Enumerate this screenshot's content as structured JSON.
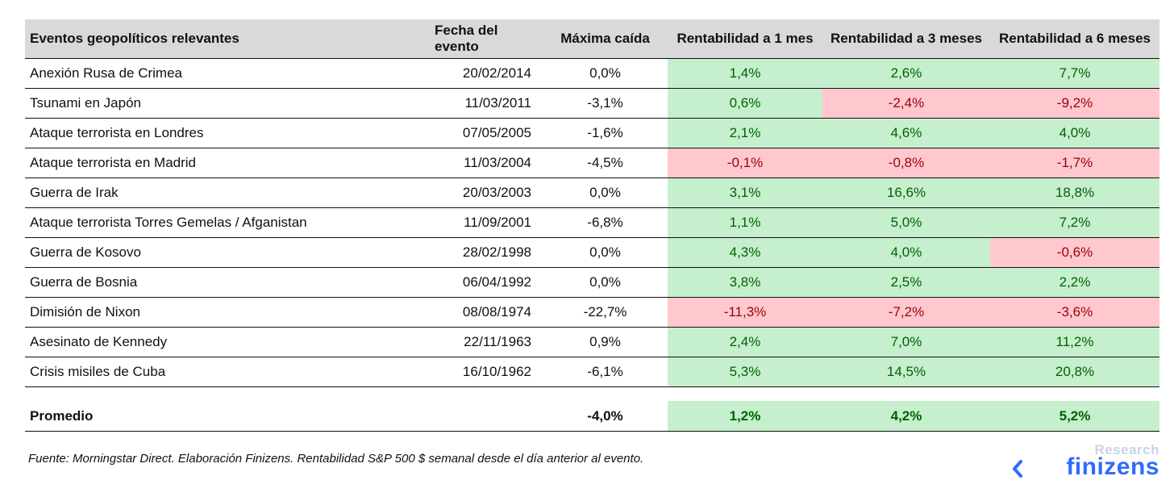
{
  "table": {
    "headers": [
      "Eventos geopolíticos relevantes",
      "Fecha del evento",
      "Máxima caída",
      "Rentabilidad a 1 mes",
      "Rentabilidad a 3 meses",
      "Rentabilidad a 6 meses"
    ],
    "rows": [
      {
        "event": "Anexión Rusa de Crimea",
        "date": "20/02/2014",
        "drop": "0,0%",
        "r1": "1,4%",
        "r3": "2,6%",
        "r6": "7,7%"
      },
      {
        "event": "Tsunami en Japón",
        "date": "11/03/2011",
        "drop": "-3,1%",
        "r1": "0,6%",
        "r3": "-2,4%",
        "r6": "-9,2%"
      },
      {
        "event": "Ataque terrorista en Londres",
        "date": "07/05/2005",
        "drop": "-1,6%",
        "r1": "2,1%",
        "r3": "4,6%",
        "r6": "4,0%"
      },
      {
        "event": "Ataque terrorista en Madrid",
        "date": "11/03/2004",
        "drop": "-4,5%",
        "r1": "-0,1%",
        "r3": "-0,8%",
        "r6": "-1,7%"
      },
      {
        "event": "Guerra de Irak",
        "date": "20/03/2003",
        "drop": "0,0%",
        "r1": "3,1%",
        "r3": "16,6%",
        "r6": "18,8%"
      },
      {
        "event": "Ataque terrorista Torres Gemelas / Afganistan",
        "date": "11/09/2001",
        "drop": "-6,8%",
        "r1": "1,1%",
        "r3": "5,0%",
        "r6": "7,2%"
      },
      {
        "event": "Guerra de Kosovo",
        "date": "28/02/1998",
        "drop": "0,0%",
        "r1": "4,3%",
        "r3": "4,0%",
        "r6": "-0,6%"
      },
      {
        "event": "Guerra de Bosnia",
        "date": "06/04/1992",
        "drop": "0,0%",
        "r1": "3,8%",
        "r3": "2,5%",
        "r6": "2,2%"
      },
      {
        "event": "Dimisión de Nixon",
        "date": "08/08/1974",
        "drop": "-22,7%",
        "r1": "-11,3%",
        "r3": "-7,2%",
        "r6": "-3,6%"
      },
      {
        "event": "Asesinato de Kennedy",
        "date": "22/11/1963",
        "drop": "0,9%",
        "r1": "2,4%",
        "r3": "7,0%",
        "r6": "11,2%"
      },
      {
        "event": "Crisis misiles de Cuba",
        "date": "16/10/1962",
        "drop": "-6,1%",
        "r1": "5,3%",
        "r3": "14,5%",
        "r6": "20,8%"
      }
    ],
    "average": {
      "label": "Promedio",
      "drop": "-4,0%",
      "r1": "1,2%",
      "r3": "4,2%",
      "r6": "5,2%"
    }
  },
  "colors": {
    "positive_bg": "#c6efce",
    "positive_text": "#006100",
    "negative_bg": "#ffc7ce",
    "negative_text": "#9c0006",
    "header_bg": "#d9d9d9",
    "brand": "#2e6bff"
  },
  "footer": {
    "source": "Fuente: Morningstar Direct. Elaboración Finizens. Rentabilidad S&P 500 $ semanal desde el día anterior al evento."
  },
  "logo": {
    "research": "Research",
    "brand": "finizens",
    "icon": "finizens-logo-icon"
  }
}
